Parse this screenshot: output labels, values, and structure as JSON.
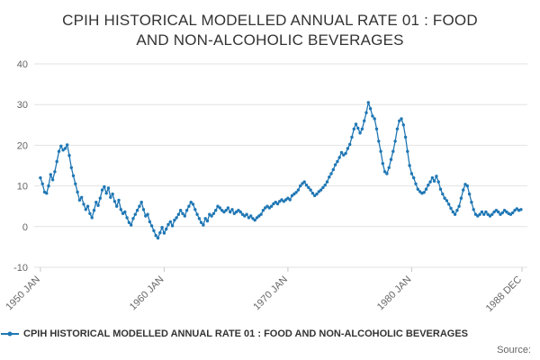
{
  "header": {
    "title_lines": [
      "CPIH HISTORICAL MODELLED ANNUAL RATE 01 : FOOD",
      "AND NON-ALCOHOLIC BEVERAGES"
    ]
  },
  "legend": {
    "label": "CPIH HISTORICAL MODELLED ANNUAL RATE 01 : FOOD AND NON-ALCOHOLIC BEVERAGES"
  },
  "source_label": "Source:",
  "colors": {
    "series_blue": "#1f77b4",
    "grid": "#e2e2e2",
    "axis_labels": "#666666",
    "title_text": "#333333"
  },
  "chart_data": {
    "type": "line",
    "title": "CPIH HISTORICAL MODELLED ANNUAL RATE 01 : FOOD AND NON-ALCOHOLIC BEVERAGES",
    "xlabel": "",
    "ylabel": "",
    "ylim": [
      -10,
      40
    ],
    "yticks": [
      -10,
      0,
      10,
      20,
      30,
      40
    ],
    "xlim": [
      1949.5,
      1989.35
    ],
    "xticks": [
      {
        "label": "1950 JAN",
        "x": 1950.0
      },
      {
        "label": "1960 JAN",
        "x": 1960.0
      },
      {
        "label": "1970 JAN",
        "x": 1970.0
      },
      {
        "label": "1980 JAN",
        "x": 1980.0
      },
      {
        "label": "1988 DEC",
        "x": 1988.917
      }
    ],
    "grid": true,
    "legend_position": "bottom-left",
    "grid_color": "#e2e2e2",
    "axis_label_color": "#666666",
    "series": [
      {
        "name": "CPIH HISTORICAL MODELLED ANNUAL RATE 01 : FOOD AND NON-ALCOHOLIC BEVERAGES",
        "color": "#1f77b4",
        "x_start": 1950.0,
        "x_step": 0.16667,
        "values": [
          12,
          10.5,
          8.5,
          8.2,
          10,
          12.8,
          11.5,
          13.5,
          16,
          18.5,
          19.8,
          18.8,
          19.2,
          20.1,
          17.5,
          14.5,
          12.5,
          10.5,
          8.5,
          6.5,
          7.2,
          5.5,
          4.2,
          5,
          3.2,
          2.2,
          4,
          6,
          5.2,
          7,
          9,
          9.8,
          8.2,
          9.5,
          7.2,
          8,
          6.2,
          5,
          6.5,
          4.2,
          3.2,
          3.6,
          2.2,
          1,
          0.4,
          2,
          3,
          4,
          5,
          6,
          4.2,
          2.6,
          3,
          1.2,
          0.2,
          -1,
          -2.2,
          -2.8,
          -1.5,
          -0.2,
          -1.6,
          -0.6,
          0.5,
          1.2,
          0.2,
          1.6,
          2.2,
          3,
          4,
          3.2,
          2.6,
          4,
          5,
          6,
          5.5,
          4.2,
          3,
          2,
          1,
          0.4,
          2,
          1.4,
          3,
          2.6,
          3.2,
          4,
          5,
          4.6,
          4,
          3.6,
          4,
          4.6,
          3.6,
          4.2,
          3.2,
          3.6,
          4,
          3.6,
          3,
          2.6,
          3,
          2.2,
          2.6,
          2,
          1.6,
          2.2,
          2.6,
          3,
          4,
          4.6,
          5,
          4.6,
          5,
          5.6,
          6,
          5.6,
          6.2,
          6.6,
          6.2,
          6.6,
          7,
          6.6,
          7.6,
          8,
          8.4,
          9,
          10,
          10.6,
          11,
          10.2,
          9.6,
          9,
          8.2,
          7.6,
          8,
          8.6,
          9,
          9.6,
          10.2,
          11,
          12.2,
          13,
          14,
          15.2,
          16,
          17,
          18.2,
          17.6,
          18,
          19.2,
          20.2,
          22,
          24,
          25.2,
          24.2,
          23,
          24,
          26,
          28,
          30.5,
          29,
          27.2,
          26.5,
          24,
          21,
          18.5,
          15.5,
          13.5,
          13,
          14.5,
          16.5,
          18.5,
          21,
          24,
          26,
          26.5,
          25,
          22,
          18.5,
          15,
          13,
          12,
          10.5,
          9.2,
          8.6,
          8.2,
          8.4,
          9.2,
          10.2,
          11,
          12,
          11.2,
          12.4,
          11,
          9.2,
          8,
          7,
          6.4,
          5.5,
          4.5,
          3.6,
          3,
          4,
          5,
          7,
          9,
          10.4,
          10,
          8,
          6,
          4.2,
          3,
          2.6,
          3,
          3.6,
          3,
          3.6,
          3,
          2.6,
          3,
          3.6,
          4,
          3.6,
          3,
          3.4,
          4,
          3.6,
          3.2,
          3,
          3.4,
          4,
          4.4,
          4,
          4.2
        ]
      }
    ]
  }
}
